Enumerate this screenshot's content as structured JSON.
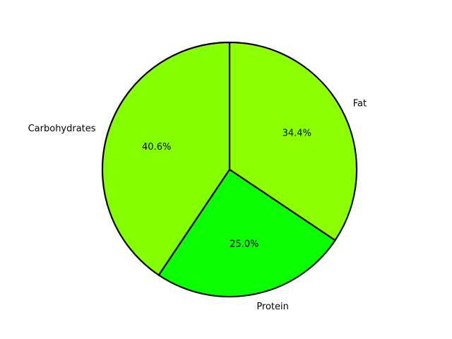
{
  "chart_data": {
    "type": "pie",
    "title": "",
    "start_angle_deg": 90,
    "direction": "clockwise",
    "slices": [
      {
        "label": "Fat",
        "value": 34.4,
        "pct_label": "34.4%",
        "color": "#8cff00"
      },
      {
        "label": "Protein",
        "value": 25.0,
        "pct_label": "25.0%",
        "color": "#0aff00"
      },
      {
        "label": "Carbohydrates",
        "value": 40.6,
        "pct_label": "40.6%",
        "color": "#84ff00"
      }
    ],
    "edge_color": "#000000"
  }
}
